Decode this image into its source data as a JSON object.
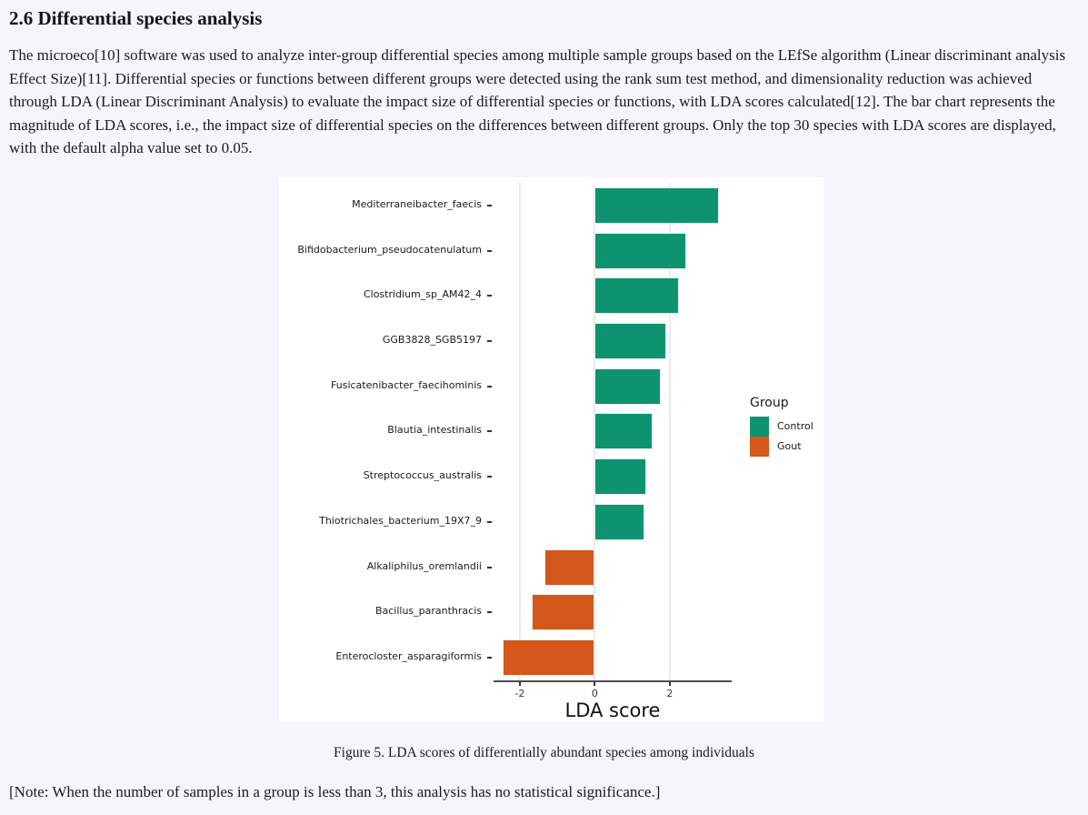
{
  "page": {
    "heading": "2.6 Differential species analysis",
    "paragraph": "The microeco[10] software was used to analyze inter-group differential species among multiple sample groups based on the LEfSe algorithm (Linear discriminant analysis Effect Size)[11]. Differential species or functions between different groups were detected using the rank sum test method, and dimensionality reduction was achieved through LDA (Linear Discriminant Analysis) to evaluate the impact size of differential species or functions, with LDA scores calculated[12]. The bar chart represents the magnitude of LDA scores, i.e., the impact size of differential species on the differences between different groups. Only the top 30 species with LDA scores are displayed, with the default alpha value set to 0.05.",
    "figure_caption": "Figure 5. LDA scores of differentially abundant species among individuals",
    "note": "[Note: When the number of samples in a group is less than 3, this analysis has no statistical significance.]"
  },
  "chart_data": {
    "type": "bar",
    "orientation": "horizontal",
    "title": "",
    "xlabel": "LDA score",
    "ylabel": "",
    "xlim": [
      -2.7,
      3.65
    ],
    "xticks": [
      -2,
      0,
      2
    ],
    "grid": true,
    "categories": [
      "Mediterraneibacter_faecis",
      "Bifidobacterium_pseudocatenulatum",
      "Clostridium_sp_AM42_4",
      "GGB3828_SGB5197",
      "Fusicatenibacter_faecihominis",
      "Blautia_intestinalis",
      "Streptococcus_australis",
      "Thiotrichales_bacterium_19X7_9",
      "Alkaliphilus_oremlandii",
      "Bacillus_paranthracis",
      "Enterocloster_asparagiformis"
    ],
    "values": [
      3.3,
      2.45,
      2.25,
      1.9,
      1.75,
      1.55,
      1.37,
      1.33,
      -1.35,
      -1.67,
      -2.45
    ],
    "groups": [
      "Control",
      "Control",
      "Control",
      "Control",
      "Control",
      "Control",
      "Control",
      "Control",
      "Gout",
      "Gout",
      "Gout"
    ],
    "legend": {
      "title": "Group",
      "position": "right",
      "entries": [
        {
          "label": "Control",
          "color": "#0e9371"
        },
        {
          "label": "Gout",
          "color": "#d4571b"
        }
      ]
    },
    "colors": {
      "Control": "#0e9371",
      "Gout": "#d4571b"
    }
  }
}
